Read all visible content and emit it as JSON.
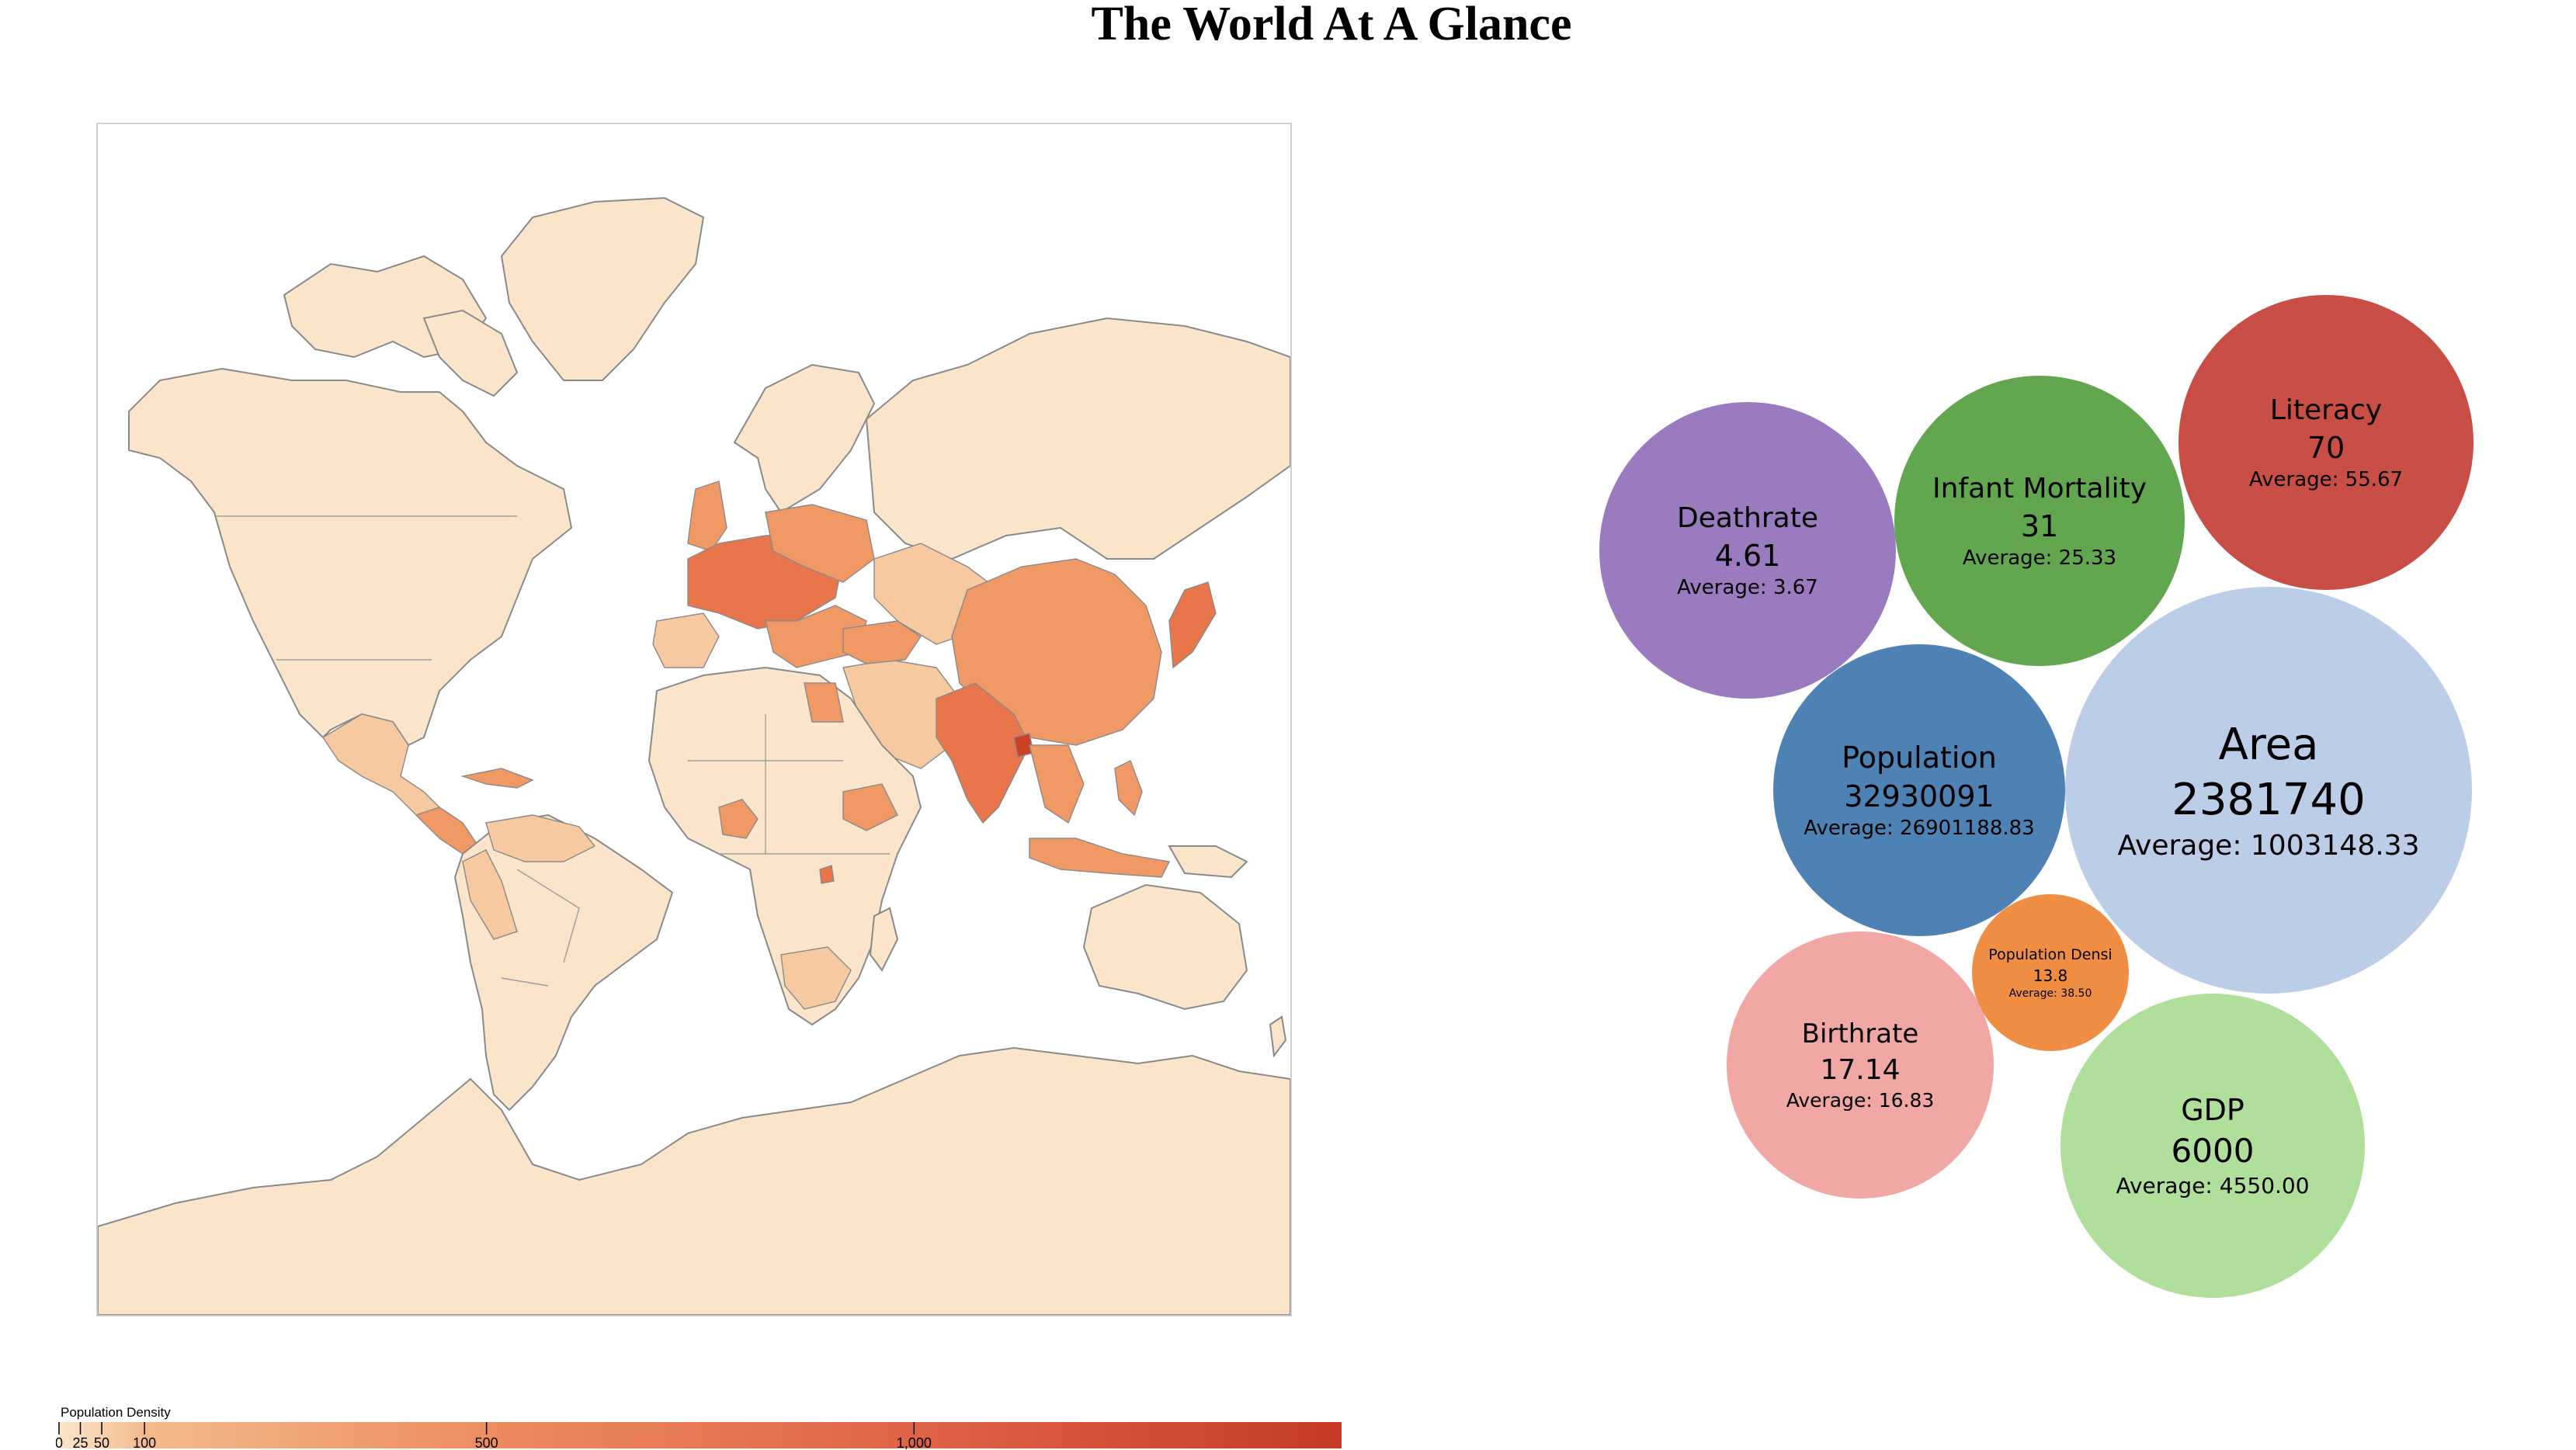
{
  "title": "The World At A Glance",
  "map": {
    "legend_title": "Population Density",
    "legend_ticks": [
      "0",
      "25",
      "50",
      "100",
      "500",
      "1,000"
    ],
    "legend_tick_values": [
      0,
      25,
      50,
      100,
      500,
      1000
    ],
    "legend_max": 1500,
    "colors": {
      "land": "#fae5ca",
      "low": "#f6c9a0",
      "medium": "#f09964",
      "high": "#e9764a",
      "very_high": "#cc4027"
    }
  },
  "bubbles": [
    {
      "id": "deathrate",
      "name": "Deathrate",
      "value": "4.61",
      "average": "Average: 3.67",
      "color": "#9a7bbf"
    },
    {
      "id": "infant-mortality",
      "name": "Infant Mortality",
      "value": "31",
      "average": "Average: 25.33",
      "color": "#62a74f"
    },
    {
      "id": "literacy",
      "name": "Literacy",
      "value": "70",
      "average": "Average: 55.67",
      "color": "#c94e46"
    },
    {
      "id": "population",
      "name": "Population",
      "value": "32930091",
      "average": "Average: 26901188.83",
      "color": "#4f82b4"
    },
    {
      "id": "area",
      "name": "Area",
      "value": "2381740",
      "average": "Average: 1003148.33",
      "color": "#bccde8"
    },
    {
      "id": "population-density",
      "name": "Population Densi",
      "value": "13.8",
      "average": "Average: 38.50",
      "color": "#ef8d43"
    },
    {
      "id": "birthrate",
      "name": "Birthrate",
      "value": "17.14",
      "average": "Average: 16.83",
      "color": "#f1a7a4"
    },
    {
      "id": "gdp",
      "name": "GDP",
      "value": "6000",
      "average": "Average: 4550.00",
      "color": "#b0df9b"
    }
  ]
}
